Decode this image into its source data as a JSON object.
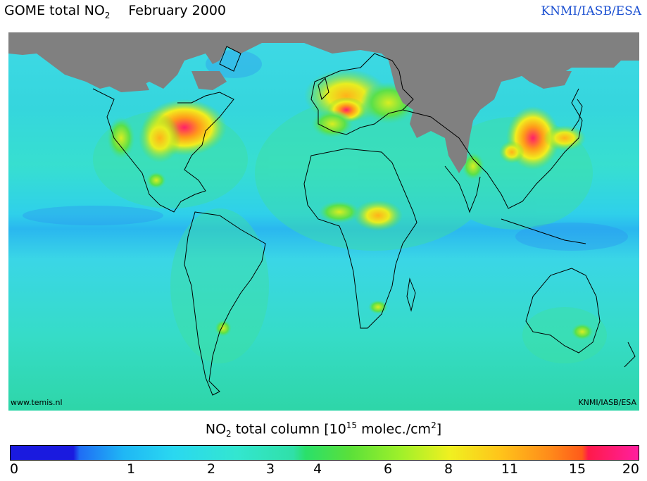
{
  "header": {
    "product_prefix": "GOME total NO",
    "product_sub": "2",
    "month": "February 2000",
    "credit": "KNMI/IASB/ESA"
  },
  "map": {
    "footer_left": "www.temis.nl",
    "footer_right": "KNMI/IASB/ESA",
    "missing_data_color": "#808080",
    "hotspots": [
      "Eastern United States",
      "Europe",
      "Eastern China",
      "Central Africa",
      "South Africa",
      "Western Australia"
    ]
  },
  "colorbar": {
    "title_pre": "NO",
    "title_sub": "2",
    "title_mid": " total column [10",
    "title_sup": "15",
    "title_post": " molec./cm",
    "title_sup2": "2",
    "title_end": "]",
    "ticks": [
      "0",
      "1",
      "2",
      "3",
      "4",
      "6",
      "8",
      "11",
      "15",
      "20"
    ],
    "colors": [
      "#1a1adf",
      "#1fb7f5",
      "#33e6d0",
      "#2ae06a",
      "#f0f020",
      "#ff8a1a",
      "#ff1f9f"
    ]
  }
}
